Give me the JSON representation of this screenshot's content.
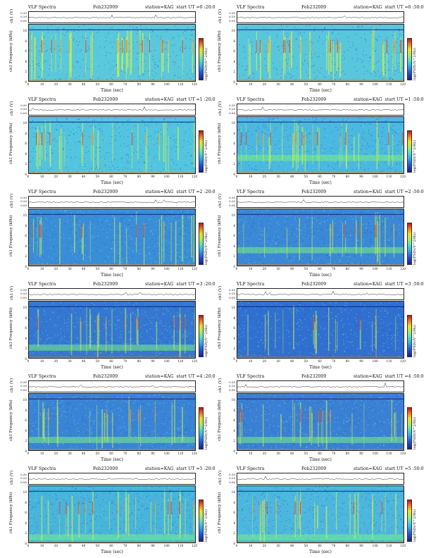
{
  "chart_data": {
    "type": "heatmap",
    "layout": "6 rows x 2 columns of VLF spectrogram panels",
    "common": {
      "title": "VLF Spectra",
      "date": "Feb232009",
      "station": "station=KAG",
      "ch1_ylabel": "ch1 (V)",
      "ch1_ticks": [
        "0.30",
        "0.20",
        "0.00",
        "-0.30"
      ],
      "ylabel": "Frequency (kHz)",
      "ylabel_prefix": "ch1",
      "yticks": [
        "0",
        "2",
        "4",
        "6",
        "8",
        "10"
      ],
      "ylim": [
        0,
        11
      ],
      "xlabel": "Time (sec)",
      "xticks": [
        "0",
        "10",
        "20",
        "30",
        "40",
        "50",
        "60",
        "70",
        "80",
        "90",
        "100",
        "110",
        "120"
      ],
      "xlim": [
        0,
        120
      ],
      "colorbar_label": "log(PSD)(V^2/Hz)",
      "colorbar_colors": [
        "#1a1aa0",
        "#1e5ae0",
        "#2fb0f0",
        "#59e0c0",
        "#a0f060",
        "#f0e020",
        "#f08020",
        "#c81010"
      ]
    },
    "panels": [
      {
        "start": "start UT =0 :20:0",
        "background": "#5ac8dc",
        "activity": 0.75,
        "band_khz": null
      },
      {
        "start": "start UT =0 :50:0",
        "background": "#58c6dc",
        "activity": 0.7,
        "band_khz": null
      },
      {
        "start": "start UT =1 :20:0",
        "background": "#52c4e0",
        "activity": 0.6,
        "band_khz": null
      },
      {
        "start": "start UT =1 :50:0",
        "background": "#4ab8e0",
        "activity": 0.55,
        "band_khz": 3
      },
      {
        "start": "start UT =2 :20:0",
        "background": "#3a8ed8",
        "activity": 0.4,
        "band_khz": null
      },
      {
        "start": "start UT =2 :50:0",
        "background": "#3a88d6",
        "activity": 0.35,
        "band_khz": 3
      },
      {
        "start": "start UT =3 :20:0",
        "background": "#3478d2",
        "activity": 0.35,
        "band_khz": 2
      },
      {
        "start": "start UT =3 :50:0",
        "background": "#3070d0",
        "activity": 0.3,
        "band_khz": null
      },
      {
        "start": "start UT =4 :20:0",
        "background": "#3a84d6",
        "activity": 0.35,
        "band_khz": 2
      },
      {
        "start": "start UT =4 :50:0",
        "background": "#3a80d4",
        "activity": 0.35,
        "band_khz": 2
      },
      {
        "start": "start UT =5 :20:0",
        "background": "#48b4dc",
        "activity": 0.45,
        "band_khz": 1
      },
      {
        "start": "start UT =5 :50:0",
        "background": "#4cb6de",
        "activity": 0.45,
        "band_khz": 1
      }
    ]
  }
}
